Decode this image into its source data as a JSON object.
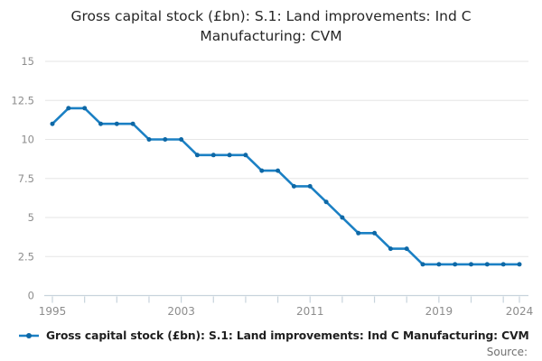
{
  "title": {
    "line1": "Gross capital stock (£bn): S.1: Land improvements: Ind C",
    "line2": "Manufacturing: CVM"
  },
  "legend": {
    "label": "Gross capital stock (£bn): S.1: Land improvements: Ind C Manufacturing: CVM"
  },
  "footer": {
    "source_label": "Source:"
  },
  "colors": {
    "line": "#1b80c4",
    "marker": "#0e68a6",
    "grid": "#e6e6e6",
    "axis": "#c7d3dc",
    "tick_label": "#8d8d8d"
  },
  "chart_data": {
    "type": "line",
    "title": "Gross capital stock (£bn): S.1: Land improvements: Ind C Manufacturing: CVM",
    "series": [
      {
        "name": "Gross capital stock (£bn): S.1: Land improvements: Ind C Manufacturing: CVM",
        "values": [
          11,
          12,
          12,
          11,
          11,
          11,
          10,
          10,
          10,
          9,
          9,
          9,
          9,
          8,
          8,
          7,
          7,
          6,
          5,
          4,
          4,
          3,
          3,
          2,
          2,
          2,
          2,
          2,
          2,
          2
        ]
      }
    ],
    "x": [
      1995,
      1996,
      1997,
      1998,
      1999,
      2000,
      2001,
      2002,
      2003,
      2004,
      2005,
      2006,
      2007,
      2008,
      2009,
      2010,
      2011,
      2012,
      2013,
      2014,
      2015,
      2016,
      2017,
      2018,
      2019,
      2020,
      2021,
      2022,
      2023,
      2024
    ],
    "xlabel": "",
    "ylabel": "",
    "ylim": [
      0,
      15
    ],
    "yticks": [
      0,
      2.5,
      5,
      7.5,
      10,
      12.5,
      15
    ],
    "xticks_labeled": [
      1995,
      2003,
      2011,
      2019,
      2024
    ],
    "minor_xtick_interval_years": 2,
    "grid": "horizontal",
    "legend_position": "bottom-left"
  }
}
